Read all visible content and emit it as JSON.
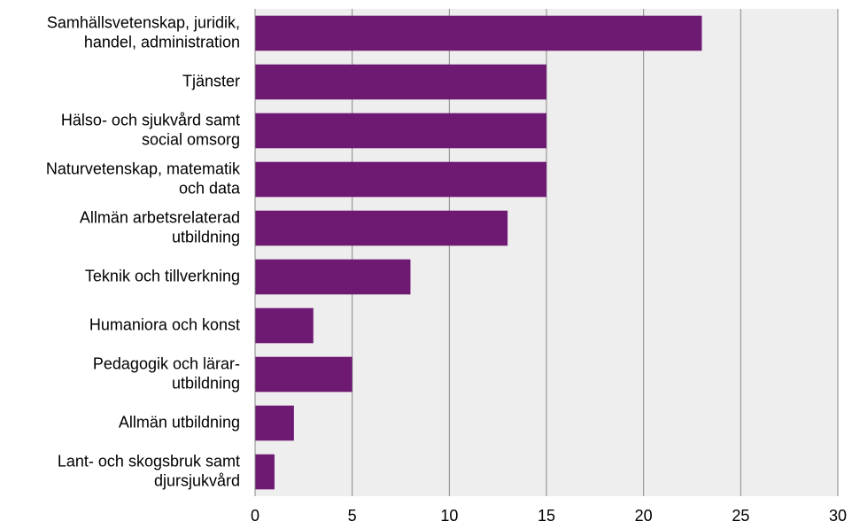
{
  "chart_data": {
    "type": "bar",
    "orientation": "horizontal",
    "categories": [
      [
        "Samhällsvetenskap, juridik,",
        "handel, administration"
      ],
      [
        "Tjänster"
      ],
      [
        "Hälso- och sjukvård samt",
        "social omsorg"
      ],
      [
        "Naturvetenskap, matematik",
        "och data"
      ],
      [
        "Allmän arbetsrelaterad",
        "utbildning"
      ],
      [
        "Teknik och tillverkning"
      ],
      [
        "Humaniora och konst"
      ],
      [
        "Pedagogik och lärar-",
        "utbildning"
      ],
      [
        "Allmän utbildning"
      ],
      [
        "Lant- och skogsbruk samt",
        "djursjukvård"
      ]
    ],
    "values": [
      23,
      15,
      15,
      15,
      13,
      8,
      3,
      5,
      2,
      1
    ],
    "xlim": [
      0,
      30
    ],
    "xticks": [
      "0",
      "5",
      "10",
      "15",
      "20",
      "25",
      "30"
    ],
    "grid": "vertical",
    "bar_color": "#6e1a73",
    "plot_background": "#eeeeee",
    "grid_color": "#888888",
    "title": "",
    "xlabel": "",
    "ylabel": ""
  }
}
